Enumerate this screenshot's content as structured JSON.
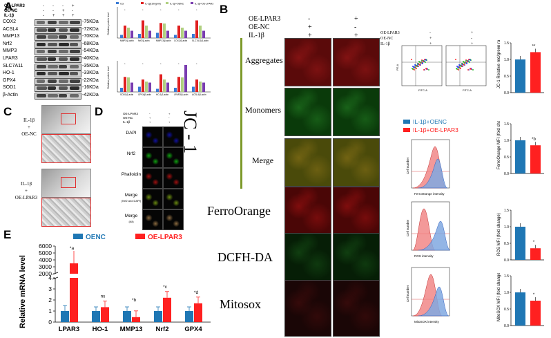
{
  "panel_labels": {
    "a": "A",
    "b": "B",
    "c": "C",
    "d": "D",
    "e": "E"
  },
  "blot": {
    "conditions": [
      "OE-LPAR3",
      "OE-NC",
      "IL-1β"
    ],
    "signs": [
      [
        "-",
        "-",
        "-",
        "+"
      ],
      [
        "-",
        "-",
        "+",
        "-"
      ],
      [
        "-",
        "+",
        "+",
        "+"
      ]
    ],
    "proteins": [
      "COX2",
      "ACSL4",
      "MMP13",
      "Nrf2",
      "MMP3",
      "LPAR3",
      "SLC7A11",
      "HO-1",
      "GPX4",
      "SOD1",
      "β-Actin"
    ],
    "kdas": [
      "-75KDa",
      "-72KDa",
      "-70KDa",
      "-68KDa",
      "-54KDa",
      "-40KDa",
      "-35KDa",
      "-33KDa",
      "-22KDa",
      "-16KDa",
      "-42KDa"
    ]
  },
  "small_bars": {
    "legend": [
      "CG",
      "IL-1β(10ng/ml)",
      "IL-1β+OENC",
      "IL-1β+OE-LPAR3"
    ],
    "ylabel": "Relative protein level",
    "top_cats": [
      "MMP3/β-actin",
      "Nrf2/β-actin",
      "MMP13/β-actin",
      "COX2/β-actin",
      "SLC7A11/β-actin"
    ],
    "bottom_cats": [
      "SOD1/β-actin",
      "GPX4/β-actin",
      "HO-1/β-actin",
      "LPAR3/β-actin",
      "ACSL4/β-actin"
    ],
    "colors": [
      "#3a7bd5",
      "#e02020",
      "#b0d080",
      "#7a3db0"
    ]
  },
  "jc1": {
    "cond_labels": [
      "OE-LPAR3",
      "OE-NC",
      "IL-1β"
    ],
    "signs_left": [
      "-",
      "+",
      "+"
    ],
    "signs_right": [
      "+",
      "-",
      "+"
    ],
    "big_label": "JC - 1",
    "rows": [
      "Aggregates",
      "Monomers",
      "Merge",
      "FerroOrange",
      "DCFH-DA",
      "Mitosox"
    ]
  },
  "flow": {
    "conditions": [
      "OE-LPAR3",
      "OE-NC",
      "IL-1β"
    ],
    "signs_left": [
      "-",
      "+",
      "+"
    ],
    "signs_right": [
      "+",
      "-",
      "+"
    ],
    "xaxis": "FITC-A",
    "yaxis": "PE-A",
    "ratio_label": "JC-1 Relative red/green ratio (fold change)",
    "histo_xlabels": [
      "FerroOrange intensity",
      "ROS intensity",
      "MitoSOX intensity"
    ],
    "histo_ylabel": "Cell number"
  },
  "b_legend": [
    "IL-1β+OENC",
    "IL-1β+OE-LPAR3"
  ],
  "b_colors": [
    "#1f77b4",
    "#ff2020"
  ],
  "b_bars": [
    {
      "ylabel": "JC-1 Relative red/green ratio (fold change)",
      "values": [
        1.0,
        1.22
      ],
      "ticks": [
        "0.0",
        "0.5",
        "1.0",
        "1.5"
      ],
      "ymax": 1.5,
      "sig": "**"
    },
    {
      "ylabel": "FerroOrange MFI (fold change)",
      "values": [
        1.0,
        0.85
      ],
      "ticks": [
        "0.0",
        "0.5",
        "1.0",
        "1.5"
      ],
      "ymax": 1.5,
      "sig": "*b"
    },
    {
      "ylabel": "ROS MFI (fold change)",
      "values": [
        1.0,
        0.35
      ],
      "ticks": [
        "0.0",
        "0.5",
        "1.0",
        "1.5"
      ],
      "ymax": 1.5,
      "sig": "*"
    },
    {
      "ylabel": "MitoSOX MFI (fold change)",
      "values": [
        1.0,
        0.75
      ],
      "ticks": [
        "0.0",
        "0.5",
        "1.0",
        "1.5"
      ],
      "ymax": 1.5,
      "sig": "*"
    }
  ],
  "c_labels": [
    [
      "IL-1β",
      "+",
      "OE-NC"
    ],
    [
      "IL-1β",
      "+",
      "OE-LPAR3"
    ]
  ],
  "d": {
    "conditions": [
      "OE-LPAR3",
      "OE-NC",
      "IL-1β"
    ],
    "signs_left": [
      "-",
      "+",
      "+"
    ],
    "signs_right": [
      "+",
      "-",
      "+"
    ],
    "rows": [
      "DAPI",
      "Nrf2",
      "Phalloidin",
      "Merge",
      "Merge"
    ],
    "subs": [
      "",
      "",
      "",
      "(Nrf2 and DAPI)",
      "(All)"
    ]
  },
  "chart_data": {
    "type": "bar",
    "title": "",
    "ylabel": "Relative mRNA level",
    "xlabel": "",
    "categories": [
      "LPAR3",
      "HO-1",
      "MMP13",
      "Nrf2",
      "GPX4"
    ],
    "series": [
      {
        "name": "OENC",
        "color": "#1f77b4",
        "values": [
          1.0,
          1.0,
          1.0,
          1.0,
          1.0
        ]
      },
      {
        "name": "OE-LPAR3",
        "color": "#ff2020",
        "values": [
          3500,
          1.35,
          0.45,
          2.2,
          1.7
        ]
      }
    ],
    "significance": [
      "*a",
      "ns",
      "*b",
      "*c",
      "*d"
    ],
    "upper_ticks": [
      "2000",
      "3000",
      "4000",
      "5000",
      "6000"
    ],
    "lower_ticks": [
      "0",
      "1",
      "2",
      "3",
      "4"
    ],
    "legend_position": "top"
  }
}
